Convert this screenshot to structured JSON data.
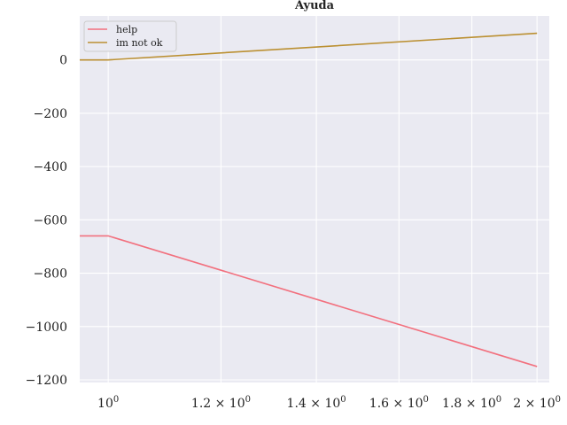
{
  "chart_data": {
    "type": "line",
    "title": "Ayuda",
    "xlabel": "",
    "ylabel": "",
    "x_scale": "log",
    "xlim": [
      0.955,
      2.04
    ],
    "ylim": [
      -1210,
      165
    ],
    "grid": true,
    "legend_position": "upper-left",
    "y_ticks": [
      0,
      -200,
      -400,
      -600,
      -800,
      -1000,
      -1200
    ],
    "y_tick_labels": [
      "0",
      "−200",
      "−400",
      "−600",
      "−800",
      "−1000",
      "−1200"
    ],
    "x_ticks": [
      1.0,
      1.2,
      1.4,
      1.6,
      1.8,
      2.0
    ],
    "x_tick_labels": [
      {
        "base": "10",
        "exp": "0"
      },
      {
        "base": "1.2 × 10",
        "exp": "0"
      },
      {
        "base": "1.4 × 10",
        "exp": "0"
      },
      {
        "base": "1.6 × 10",
        "exp": "0"
      },
      {
        "base": "1.8 × 10",
        "exp": "0"
      },
      {
        "base": "2 × 10",
        "exp": "0"
      }
    ],
    "series": [
      {
        "name": "help",
        "color": "#f2707e",
        "x": [
          0.955,
          1.0,
          2.0
        ],
        "y": [
          -660,
          -660,
          -1150
        ]
      },
      {
        "name": "im not ok",
        "color": "#bb9032",
        "x": [
          0.955,
          1.0,
          2.0
        ],
        "y": [
          0,
          0,
          100
        ]
      }
    ]
  },
  "colors": {
    "plot_background": "#eaeaf2",
    "grid": "#ffffff"
  }
}
